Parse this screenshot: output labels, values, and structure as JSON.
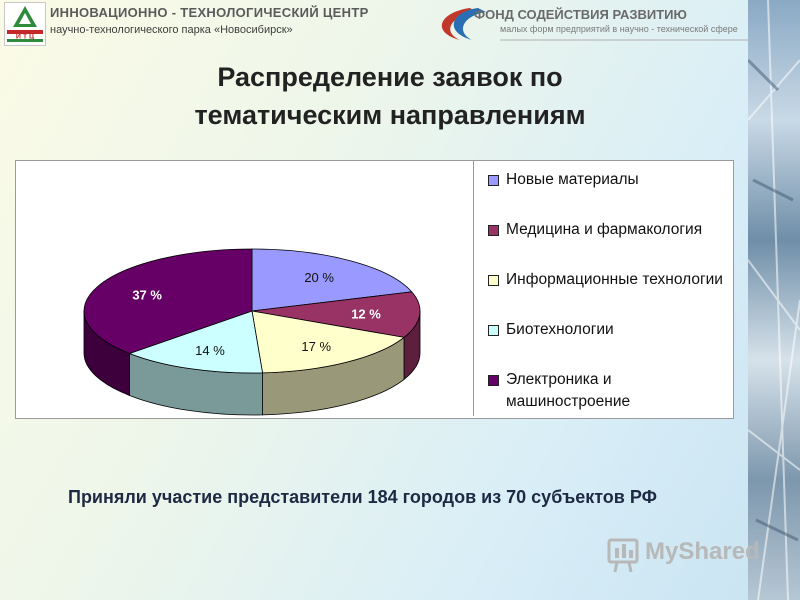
{
  "header": {
    "org_title": "ИННОВАЦИОННО - ТЕХНОЛОГИЧЕСКИЙ ЦЕНТР",
    "org_subtitle": "научно-технологического парка «Новосибирск»",
    "logo_text": "И Т Ц",
    "fund_title": "ФОНД СОДЕЙСТВИЯ РАЗВИТИЮ",
    "fund_subtitle": "малых форм предприятий в научно - технической сфере"
  },
  "slide": {
    "title_line1": "Распределение заявок по",
    "title_line2": "тематическим направлениям",
    "footer": "Приняли участие представители 184 городов из 70 субъектов РФ"
  },
  "watermark": {
    "text": "MyShared"
  },
  "chart_data": {
    "type": "pie",
    "style": "3d",
    "legend_position": "right",
    "series": [
      {
        "name": "Новые материалы",
        "value": 20,
        "label": "20 %",
        "color": "#9999ff"
      },
      {
        "name": "Медицина и фармакология",
        "value": 12,
        "label": "12 %",
        "color": "#993366"
      },
      {
        "name": "Информационные технологии",
        "value": 17,
        "label": "17 %",
        "color": "#ffffcc"
      },
      {
        "name": "Биотехнологии",
        "value": 14,
        "label": "14 %",
        "color": "#ccffff"
      },
      {
        "name": "Электроника и машиностроение",
        "value": 37,
        "label": "37 %",
        "color": "#660066"
      }
    ]
  }
}
